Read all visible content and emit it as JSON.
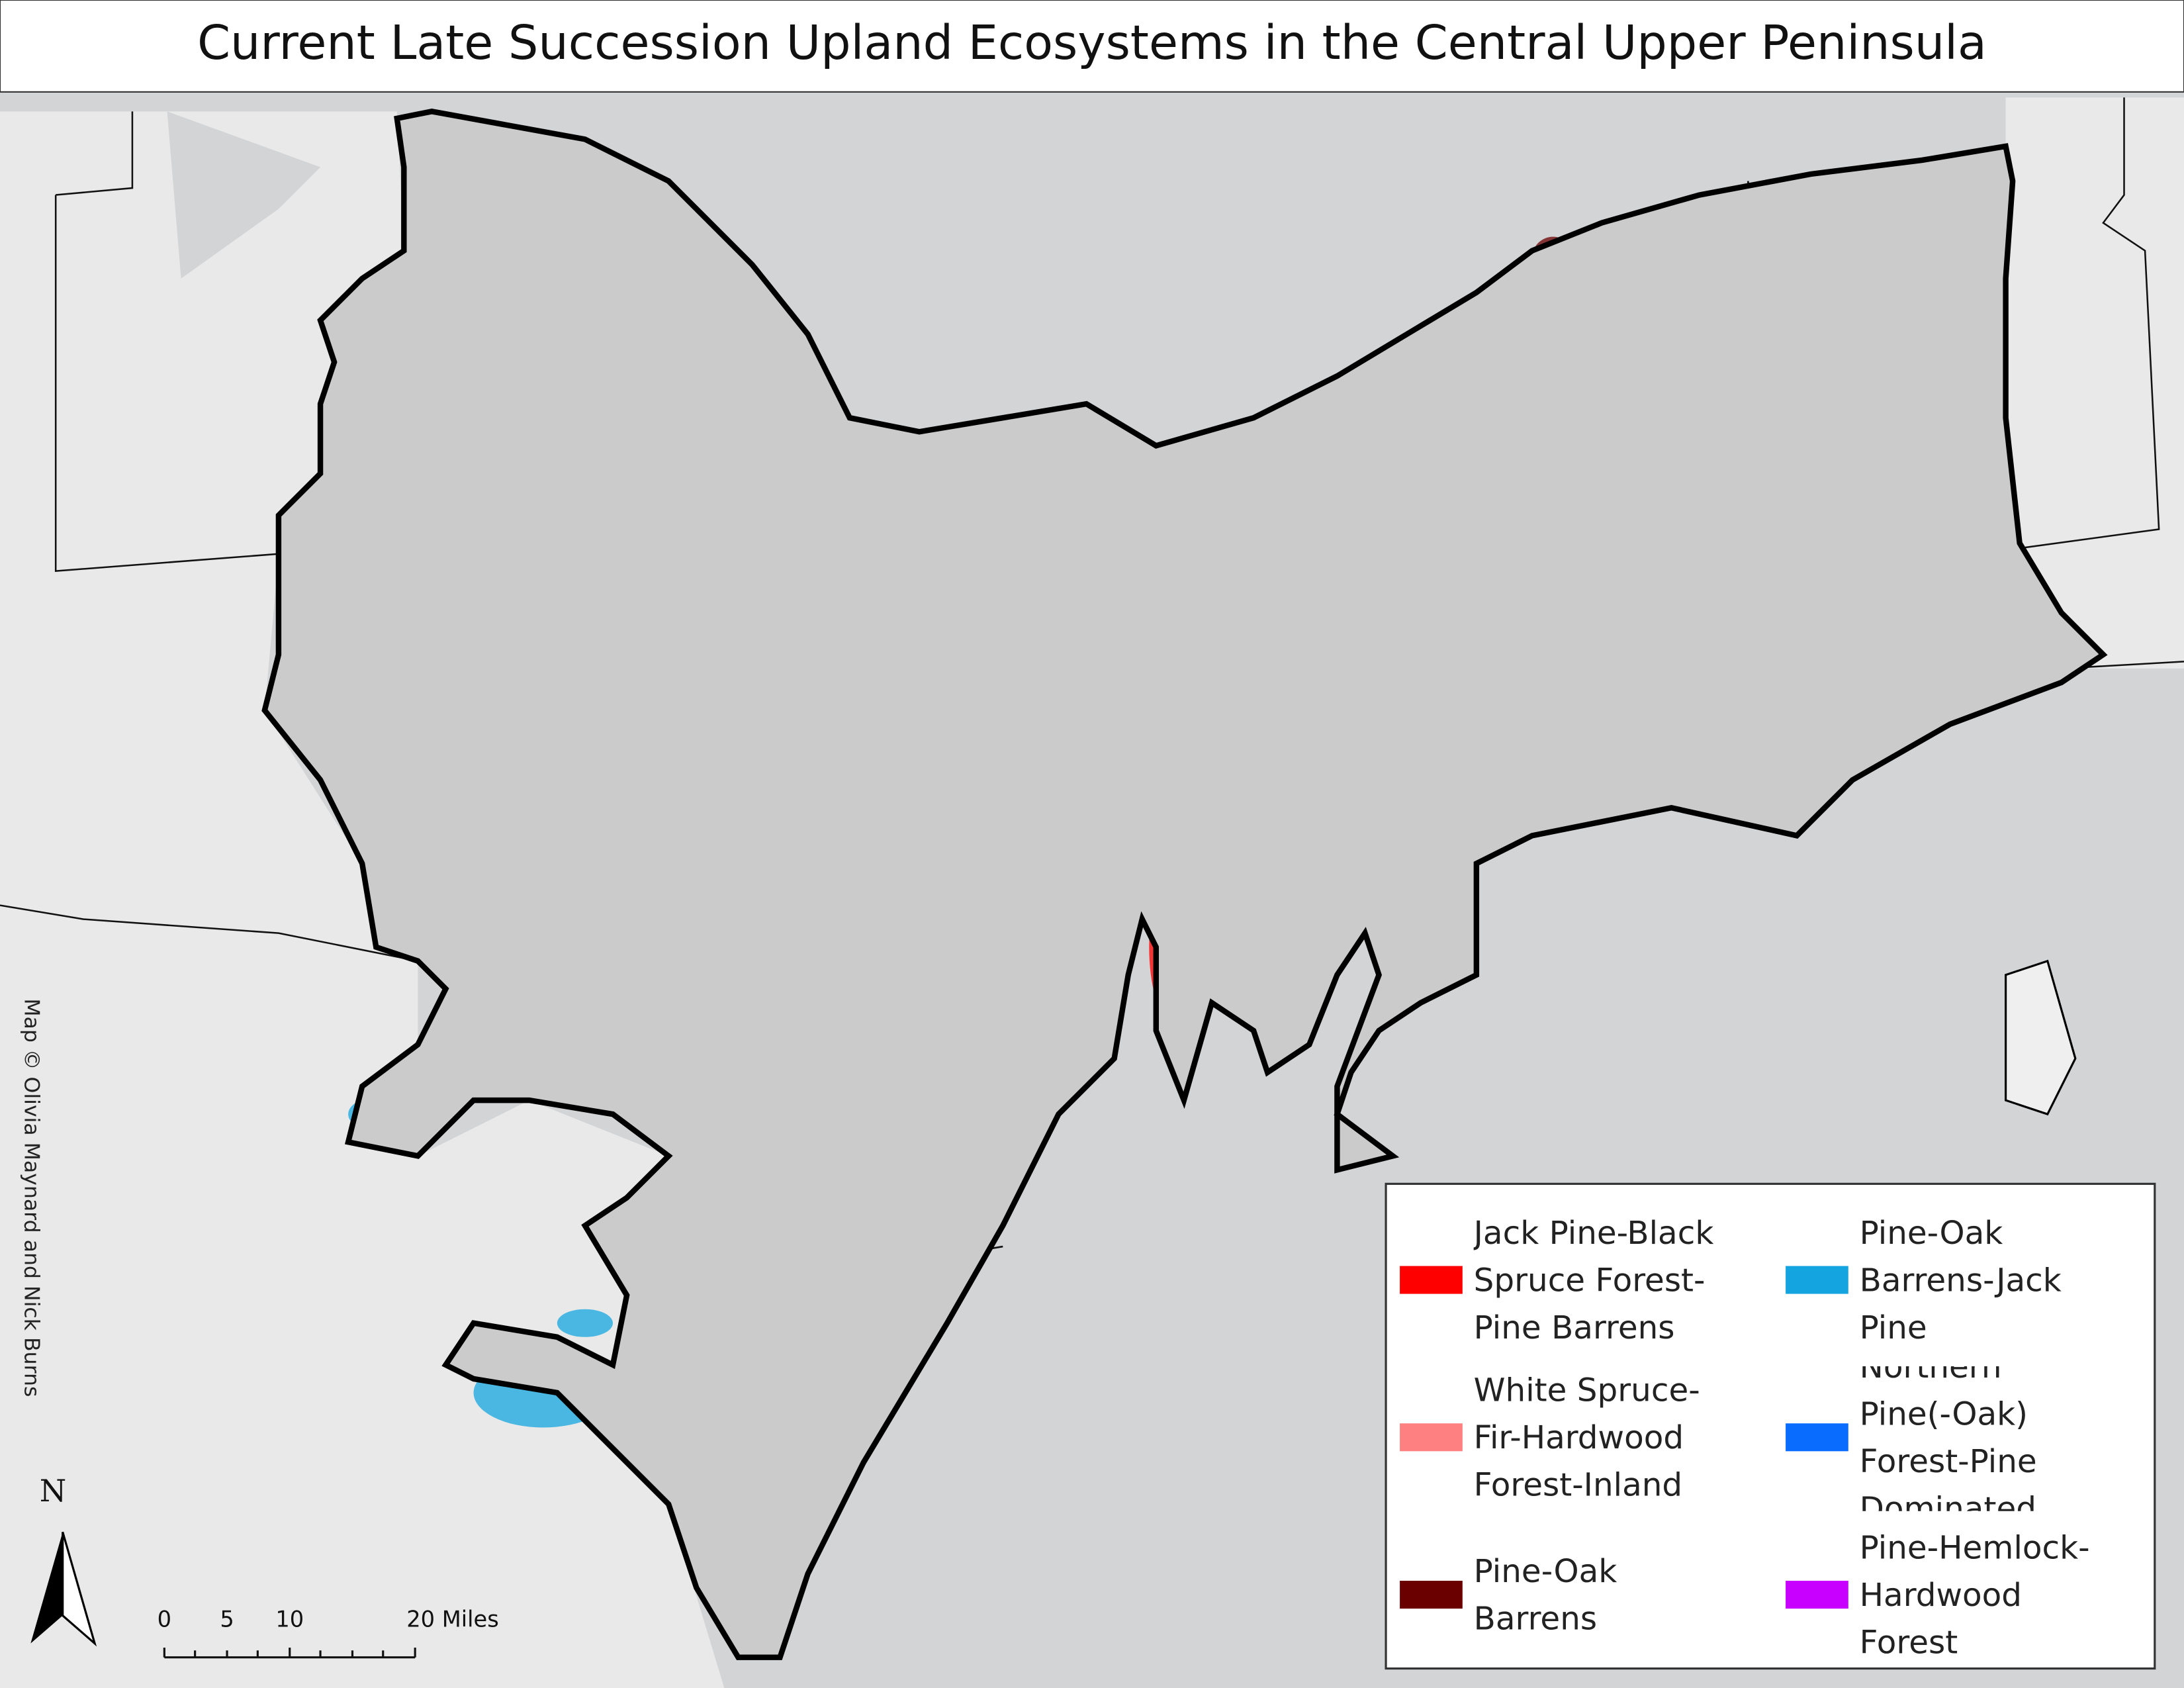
{
  "title": "Current Late Succession Upland Ecosystems in the Central Upper Peninsula",
  "legend": {
    "items": [
      {
        "label": "Jack Pine-Black Spruce Forest-Pine Barrens",
        "color": "#ff0000"
      },
      {
        "label": "Pine-Oak Barrens-Jack Pine",
        "color": "#14a5e0"
      },
      {
        "label": "White Spruce-Fir-Hardwood Forest-Inland",
        "color": "#ff8080"
      },
      {
        "label": "Northern Pine(-Oak) Forest-Pine Dominated",
        "color": "#0a6cff"
      },
      {
        "label": "Pine-Oak Barrens",
        "color": "#6b0000"
      },
      {
        "label": "Pine-Hemlock-Hardwood Forest",
        "color": "#c800ff"
      }
    ]
  },
  "scale_bar": {
    "labels": [
      "0",
      "5",
      "10",
      "20 Miles"
    ]
  },
  "north_arrow": {
    "label": "N"
  },
  "credit": "Map © Olivia Maynard and Nick Burns"
}
